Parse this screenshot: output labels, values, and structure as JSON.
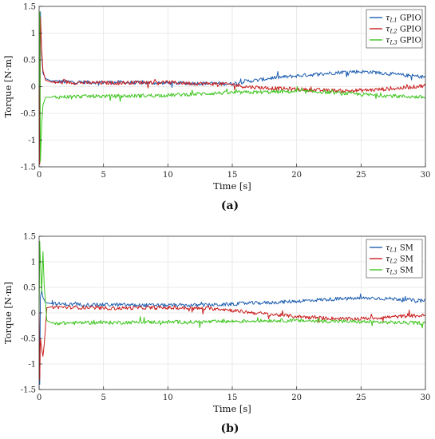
{
  "chart_data": [
    {
      "type": "line",
      "panel_label": "(a)",
      "xlabel": "Time [s]",
      "ylabel": "Torque [N·m]",
      "xlim": [
        0,
        30
      ],
      "ylim": [
        -1.5,
        1.5
      ],
      "xticks": [
        0,
        5,
        10,
        15,
        20,
        25,
        30
      ],
      "yticks": [
        -1.5,
        -1,
        -0.5,
        0,
        0.5,
        1,
        1.5
      ],
      "grid": true,
      "legend_position": "top-right",
      "series": [
        {
          "name": "τL1 GPIO",
          "symbol": "τ",
          "sub": "L",
          "subsub": "1",
          "suffix": " GPIO",
          "color": "#1f5fb0",
          "x": [
            0,
            0.05,
            0.1,
            0.2,
            0.3,
            0.5,
            1,
            2,
            4,
            6,
            8,
            10,
            12,
            14,
            15,
            16,
            17,
            18,
            20,
            22,
            24,
            25,
            26,
            28,
            30
          ],
          "y": [
            0,
            -1.2,
            1.4,
            0.6,
            0.25,
            0.15,
            0.1,
            0.09,
            0.08,
            0.08,
            0.07,
            0.07,
            0.06,
            0.06,
            0.05,
            0.1,
            0.12,
            0.16,
            0.2,
            0.24,
            0.28,
            0.28,
            0.27,
            0.22,
            0.18
          ]
        },
        {
          "name": "τL2 GPIO",
          "symbol": "τ",
          "sub": "L",
          "subsub": "2",
          "suffix": " GPIO",
          "color": "#c81e1e",
          "x": [
            0,
            0.05,
            0.1,
            0.2,
            0.3,
            0.5,
            1,
            2,
            4,
            6,
            8,
            10,
            12,
            14,
            15,
            16,
            18,
            20,
            22,
            24,
            26,
            28,
            30
          ],
          "y": [
            0,
            -1.45,
            1.3,
            0.7,
            0.3,
            0.12,
            0.08,
            0.08,
            0.07,
            0.07,
            0.08,
            0.08,
            0.06,
            0.05,
            0.04,
            0.0,
            -0.03,
            -0.05,
            -0.07,
            -0.08,
            -0.06,
            -0.03,
            0.02
          ]
        },
        {
          "name": "τL3 GPIO",
          "symbol": "τ",
          "sub": "L",
          "subsub": "3",
          "suffix": " GPIO",
          "color": "#3ec51f",
          "x": [
            0,
            0.05,
            0.1,
            0.2,
            0.3,
            0.5,
            1,
            2,
            4,
            6,
            8,
            10,
            12,
            14,
            16,
            18,
            20,
            22,
            24,
            26,
            28,
            30
          ],
          "y": [
            0,
            1.4,
            -1.4,
            -0.7,
            -0.35,
            -0.2,
            -0.2,
            -0.19,
            -0.18,
            -0.18,
            -0.17,
            -0.16,
            -0.14,
            -0.12,
            -0.11,
            -0.1,
            -0.09,
            -0.1,
            -0.13,
            -0.16,
            -0.18,
            -0.2
          ]
        }
      ]
    },
    {
      "type": "line",
      "panel_label": "(b)",
      "xlabel": "Time [s]",
      "ylabel": "Torque [N·m]",
      "xlim": [
        0,
        30
      ],
      "ylim": [
        -1.5,
        1.5
      ],
      "xticks": [
        0,
        5,
        10,
        15,
        20,
        25,
        30
      ],
      "yticks": [
        -1.5,
        -1,
        -0.5,
        0,
        0.5,
        1,
        1.5
      ],
      "grid": true,
      "legend_position": "top-right",
      "series": [
        {
          "name": "τL1 SM",
          "symbol": "τ",
          "sub": "L",
          "subsub": "1",
          "suffix": " SM",
          "color": "#1f5fb0",
          "x": [
            0,
            0.05,
            0.1,
            0.2,
            0.3,
            0.5,
            1,
            2,
            4,
            6,
            8,
            10,
            12,
            14,
            15,
            16,
            18,
            20,
            22,
            24,
            26,
            28,
            30
          ],
          "y": [
            0,
            -1.4,
            0.3,
            0.45,
            0.3,
            0.2,
            0.18,
            0.17,
            0.16,
            0.16,
            0.15,
            0.15,
            0.15,
            0.16,
            0.17,
            0.19,
            0.2,
            0.23,
            0.26,
            0.28,
            0.29,
            0.27,
            0.23
          ]
        },
        {
          "name": "τL2 SM",
          "symbol": "τ",
          "sub": "L",
          "subsub": "2",
          "suffix": " SM",
          "color": "#c81e1e",
          "x": [
            0,
            0.05,
            0.1,
            0.2,
            0.3,
            0.4,
            0.6,
            1,
            2,
            4,
            6,
            8,
            10,
            12,
            14,
            16,
            18,
            20,
            22,
            24,
            26,
            28,
            30
          ],
          "y": [
            0,
            -1.3,
            -0.5,
            -0.7,
            -0.85,
            -0.6,
            0.1,
            0.12,
            0.11,
            0.1,
            0.09,
            0.1,
            0.1,
            0.09,
            0.08,
            0.02,
            -0.03,
            -0.07,
            -0.1,
            -0.12,
            -0.1,
            -0.07,
            -0.05
          ]
        },
        {
          "name": "τL3 SM",
          "symbol": "τ",
          "sub": "L",
          "subsub": "3",
          "suffix": " SM",
          "color": "#3ec51f",
          "x": [
            0,
            0.05,
            0.1,
            0.2,
            0.3,
            0.4,
            0.6,
            1,
            2,
            4,
            6,
            8,
            10,
            12,
            14,
            16,
            18,
            20,
            22,
            24,
            26,
            28,
            30
          ],
          "y": [
            0,
            1.4,
            1.0,
            0.4,
            1.2,
            0.5,
            -0.15,
            -0.2,
            -0.2,
            -0.19,
            -0.19,
            -0.18,
            -0.18,
            -0.18,
            -0.17,
            -0.16,
            -0.15,
            -0.15,
            -0.16,
            -0.17,
            -0.18,
            -0.19,
            -0.2
          ]
        }
      ]
    }
  ]
}
